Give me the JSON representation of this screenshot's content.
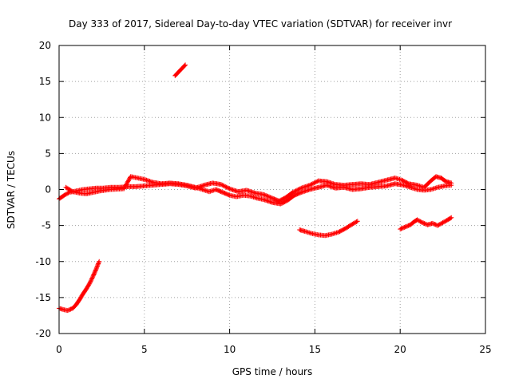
{
  "chart_data": {
    "type": "scatter",
    "title": "Day 333 of 2017, Sidereal Day-to-day VTEC variation (SDTVAR) for receiver invr",
    "xlabel": "GPS time / hours",
    "ylabel": "SDTVAR / TECUs",
    "xlim": [
      0,
      25
    ],
    "ylim": [
      -20,
      20
    ],
    "xticks": [
      0,
      5,
      10,
      15,
      20,
      25
    ],
    "yticks": [
      -20,
      -15,
      -10,
      -5,
      0,
      5,
      10,
      15,
      20
    ],
    "grid": true,
    "marker": "+",
    "color": "#ff0000",
    "series": [
      {
        "name": "main-trace",
        "points": [
          [
            0.0,
            -1.3
          ],
          [
            0.3,
            -0.8
          ],
          [
            0.6,
            -0.4
          ],
          [
            1.0,
            -0.2
          ],
          [
            1.4,
            0.0
          ],
          [
            1.8,
            0.1
          ],
          [
            2.2,
            0.2
          ],
          [
            2.6,
            0.2
          ],
          [
            3.0,
            0.3
          ],
          [
            3.5,
            0.3
          ],
          [
            4.0,
            0.4
          ],
          [
            4.5,
            0.4
          ],
          [
            5.0,
            0.5
          ],
          [
            5.5,
            0.6
          ],
          [
            6.0,
            0.7
          ],
          [
            6.5,
            0.8
          ],
          [
            7.0,
            0.7
          ],
          [
            7.5,
            0.5
          ],
          [
            8.0,
            0.2
          ],
          [
            8.5,
            0.6
          ],
          [
            9.0,
            0.9
          ],
          [
            9.5,
            0.7
          ],
          [
            10.0,
            0.1
          ],
          [
            10.5,
            -0.3
          ],
          [
            11.0,
            -0.1
          ],
          [
            11.5,
            -0.5
          ],
          [
            12.0,
            -0.7
          ],
          [
            12.5,
            -1.2
          ],
          [
            12.9,
            -1.6
          ],
          [
            13.3,
            -1.1
          ],
          [
            13.7,
            -0.4
          ],
          [
            14.2,
            0.2
          ],
          [
            14.7,
            0.6
          ],
          [
            15.2,
            1.2
          ],
          [
            15.7,
            1.1
          ],
          [
            16.2,
            0.7
          ],
          [
            16.7,
            0.6
          ],
          [
            17.2,
            0.7
          ],
          [
            17.7,
            0.8
          ],
          [
            18.2,
            0.7
          ],
          [
            18.7,
            1.0
          ],
          [
            19.2,
            1.3
          ],
          [
            19.7,
            1.6
          ],
          [
            20.1,
            1.3
          ],
          [
            20.5,
            0.8
          ],
          [
            21.0,
            0.6
          ],
          [
            21.4,
            0.3
          ],
          [
            21.8,
            1.2
          ],
          [
            22.1,
            1.8
          ],
          [
            22.4,
            1.6
          ],
          [
            22.7,
            1.1
          ],
          [
            23.0,
            0.9
          ]
        ]
      },
      {
        "name": "lower-trace",
        "points": [
          [
            0.4,
            0.3
          ],
          [
            0.8,
            -0.3
          ],
          [
            1.2,
            -0.5
          ],
          [
            1.6,
            -0.6
          ],
          [
            2.0,
            -0.4
          ],
          [
            2.4,
            -0.2
          ],
          [
            3.0,
            0.0
          ],
          [
            3.8,
            0.1
          ],
          [
            4.2,
            1.8
          ],
          [
            4.6,
            1.6
          ],
          [
            5.0,
            1.4
          ],
          [
            5.5,
            1.0
          ],
          [
            6.0,
            0.8
          ],
          [
            6.5,
            0.9
          ],
          [
            7.0,
            0.8
          ],
          [
            7.5,
            0.6
          ],
          [
            8.0,
            0.3
          ],
          [
            8.4,
            0.0
          ],
          [
            8.8,
            -0.3
          ],
          [
            9.2,
            0.0
          ],
          [
            9.6,
            -0.4
          ],
          [
            10.0,
            -0.8
          ],
          [
            10.4,
            -1.0
          ],
          [
            10.8,
            -0.8
          ],
          [
            11.2,
            -0.9
          ],
          [
            11.6,
            -1.2
          ],
          [
            12.0,
            -1.4
          ],
          [
            12.5,
            -1.8
          ],
          [
            13.0,
            -2.0
          ],
          [
            13.4,
            -1.5
          ],
          [
            13.8,
            -0.8
          ],
          [
            14.2,
            -0.4
          ],
          [
            14.7,
            0.0
          ],
          [
            15.2,
            0.3
          ],
          [
            15.7,
            0.6
          ],
          [
            16.2,
            0.2
          ],
          [
            16.7,
            0.3
          ],
          [
            17.2,
            0.0
          ],
          [
            17.7,
            0.1
          ],
          [
            18.2,
            0.3
          ],
          [
            18.7,
            0.4
          ],
          [
            19.2,
            0.5
          ],
          [
            19.7,
            0.8
          ],
          [
            20.2,
            0.6
          ],
          [
            20.6,
            0.3
          ],
          [
            21.0,
            0.0
          ],
          [
            21.4,
            -0.1
          ],
          [
            21.8,
            0.0
          ],
          [
            22.2,
            0.3
          ],
          [
            22.6,
            0.5
          ],
          [
            23.0,
            0.6
          ]
        ]
      },
      {
        "name": "bottom-left-segment",
        "points": [
          [
            0.0,
            -16.5
          ],
          [
            0.3,
            -16.7
          ],
          [
            0.5,
            -16.8
          ],
          [
            0.8,
            -16.5
          ],
          [
            1.0,
            -16.0
          ],
          [
            1.2,
            -15.3
          ],
          [
            1.4,
            -14.5
          ],
          [
            1.6,
            -13.8
          ],
          [
            1.8,
            -13.0
          ],
          [
            2.0,
            -12.0
          ],
          [
            2.2,
            -10.9
          ],
          [
            2.35,
            -10.0
          ]
        ]
      },
      {
        "name": "upper-segment",
        "points": [
          [
            6.8,
            15.8
          ],
          [
            7.0,
            16.3
          ],
          [
            7.2,
            16.8
          ],
          [
            7.4,
            17.3
          ]
        ]
      },
      {
        "name": "mid-segment-a",
        "points": [
          [
            14.1,
            -5.6
          ],
          [
            14.4,
            -5.8
          ],
          [
            14.8,
            -6.1
          ],
          [
            15.2,
            -6.3
          ],
          [
            15.6,
            -6.4
          ],
          [
            16.0,
            -6.2
          ],
          [
            16.4,
            -5.9
          ],
          [
            16.8,
            -5.4
          ],
          [
            17.2,
            -4.8
          ],
          [
            17.5,
            -4.4
          ]
        ]
      },
      {
        "name": "mid-segment-b",
        "points": [
          [
            20.0,
            -5.5
          ],
          [
            20.3,
            -5.2
          ],
          [
            20.6,
            -4.9
          ],
          [
            20.8,
            -4.5
          ],
          [
            21.0,
            -4.2
          ],
          [
            21.3,
            -4.6
          ],
          [
            21.6,
            -4.9
          ],
          [
            21.9,
            -4.7
          ],
          [
            22.2,
            -5.0
          ],
          [
            22.5,
            -4.6
          ],
          [
            22.8,
            -4.2
          ],
          [
            23.0,
            -3.9
          ]
        ]
      }
    ]
  }
}
